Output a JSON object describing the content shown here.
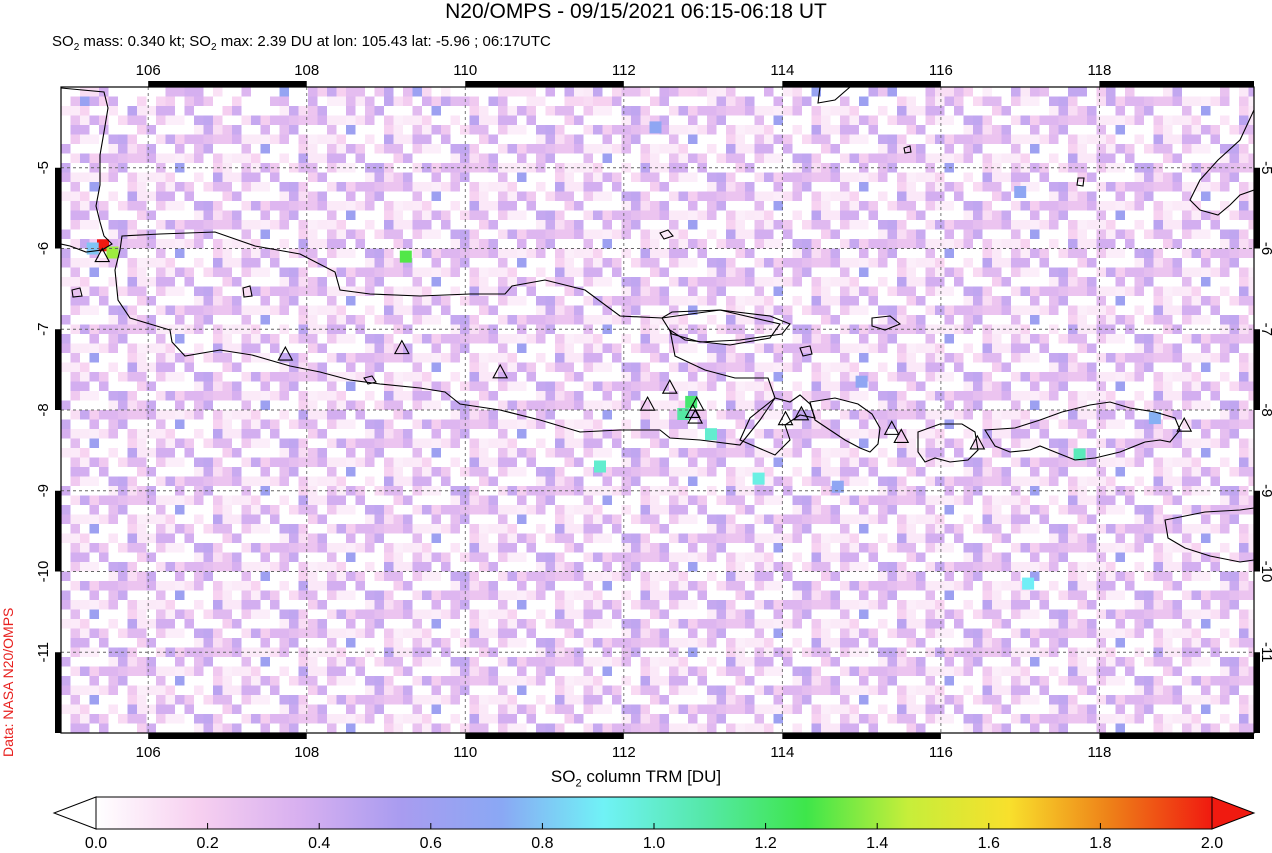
{
  "title": "N20/OMPS - 09/15/2021 06:15-06:18 UT",
  "subtitle": {
    "mass_prefix": "SO",
    "mass_sub": "2",
    "mass_text": " mass: 0.340 kt; SO",
    "max_sub": "2",
    "max_text": " max: 2.39 DU at lon: 105.43 lat: -5.96 ; 06:17UTC"
  },
  "credit": "Data: NASA N20/OMPS",
  "map": {
    "lon_range": [
      104.9,
      119.95
    ],
    "lat_range": [
      -12.0,
      -4.0
    ],
    "lon_ticks": [
      "106",
      "108",
      "110",
      "112",
      "114",
      "116",
      "118"
    ],
    "lon_tick_values": [
      106,
      108,
      110,
      112,
      114,
      116,
      118
    ],
    "lat_ticks": [
      "-5",
      "-6",
      "-7",
      "-8",
      "-9",
      "-10",
      "-11"
    ],
    "lat_tick_values": [
      -5,
      -6,
      -7,
      -8,
      -9,
      -10,
      -11
    ],
    "grid": "dashed",
    "volcanoes": [
      {
        "lon": 105.42,
        "lat": -6.1
      },
      {
        "lon": 107.73,
        "lat": -7.32
      },
      {
        "lon": 109.2,
        "lat": -7.24
      },
      {
        "lon": 110.44,
        "lat": -7.54
      },
      {
        "lon": 112.3,
        "lat": -7.94
      },
      {
        "lon": 112.58,
        "lat": -7.73
      },
      {
        "lon": 112.92,
        "lat": -7.94
      },
      {
        "lon": 112.9,
        "lat": -8.1
      },
      {
        "lon": 112.87,
        "lat": -8.03
      },
      {
        "lon": 114.04,
        "lat": -8.12
      },
      {
        "lon": 114.24,
        "lat": -8.06
      },
      {
        "lon": 115.38,
        "lat": -8.24
      },
      {
        "lon": 115.5,
        "lat": -8.34
      },
      {
        "lon": 116.46,
        "lat": -8.42
      },
      {
        "lon": 119.07,
        "lat": -8.2
      }
    ],
    "hotspots": [
      {
        "lon": 105.43,
        "lat": -5.96,
        "du": 2.39
      },
      {
        "lon": 105.55,
        "lat": -6.05,
        "du": 1.4
      },
      {
        "lon": 105.3,
        "lat": -6.0,
        "du": 0.8
      },
      {
        "lon": 109.25,
        "lat": -6.1,
        "du": 1.3
      },
      {
        "lon": 112.85,
        "lat": -7.9,
        "du": 1.2
      },
      {
        "lon": 112.75,
        "lat": -8.05,
        "du": 1.1
      },
      {
        "lon": 117.75,
        "lat": -8.55,
        "du": 1.05
      },
      {
        "lon": 111.7,
        "lat": -8.7,
        "du": 1.0
      },
      {
        "lon": 113.7,
        "lat": -8.85,
        "du": 0.95
      },
      {
        "lon": 115.0,
        "lat": -7.65,
        "du": 0.7
      },
      {
        "lon": 117.0,
        "lat": -5.3,
        "du": 0.7
      },
      {
        "lon": 118.7,
        "lat": -8.1,
        "du": 0.75
      },
      {
        "lon": 113.1,
        "lat": -8.3,
        "du": 1.0
      },
      {
        "lon": 114.7,
        "lat": -8.95,
        "du": 0.7
      },
      {
        "lon": 117.1,
        "lat": -10.15,
        "du": 0.9
      },
      {
        "lon": 112.4,
        "lat": -4.5,
        "du": 0.7
      }
    ]
  },
  "colorbar": {
    "label_prefix": "SO",
    "label_sub": "2",
    "label_text": " column TRM [DU]",
    "ticks": [
      "0.0",
      "0.2",
      "0.4",
      "0.6",
      "0.8",
      "1.0",
      "1.2",
      "1.4",
      "1.6",
      "1.8",
      "2.0"
    ],
    "tick_values": [
      0.0,
      0.2,
      0.4,
      0.6,
      0.8,
      1.0,
      1.2,
      1.4,
      1.6,
      1.8,
      2.0
    ],
    "colors": [
      "#ffffff",
      "#f7d0f0",
      "#d8b0f0",
      "#a99cf0",
      "#8aa8f4",
      "#70f2f6",
      "#55e8a8",
      "#3ee64a",
      "#c6ee3a",
      "#f8e02c",
      "#ee8018",
      "#f01a10"
    ],
    "under_color": "#ffffff",
    "over_color": "#f01a10"
  }
}
